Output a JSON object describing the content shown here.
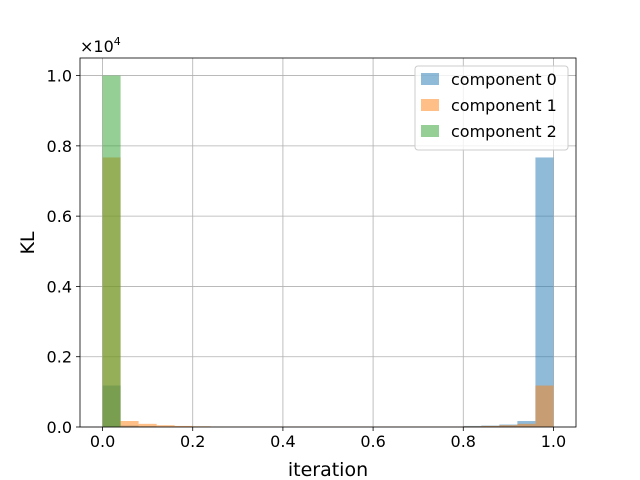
{
  "chart_data": {
    "type": "bar",
    "subtype": "histogram",
    "title": "",
    "xlabel": "iteration",
    "ylabel": "KL",
    "xlim": [
      -0.05,
      1.05
    ],
    "ylim": [
      0,
      1.05
    ],
    "y_offset_label": "×10",
    "y_offset_exponent": "4",
    "x_ticks": [
      "0.0",
      "0.2",
      "0.4",
      "0.6",
      "0.8",
      "1.0"
    ],
    "x_tick_values": [
      0.0,
      0.2,
      0.4,
      0.6,
      0.8,
      1.0
    ],
    "y_ticks": [
      "0.0",
      "0.2",
      "0.4",
      "0.6",
      "0.8",
      "1.0"
    ],
    "y_tick_values": [
      0.0,
      0.2,
      0.4,
      0.6,
      0.8,
      1.0
    ],
    "grid": true,
    "legend_position": "top-right",
    "bins": {
      "start": 0.0,
      "end": 1.0,
      "count": 25
    },
    "series": [
      {
        "name": "component 0",
        "color": "#1f77b4",
        "values": [
          0.118,
          0.004,
          0.002,
          0.001,
          0.001,
          0.001,
          0.001,
          0.001,
          0.001,
          0.001,
          0.001,
          0.001,
          0.001,
          0.001,
          0.001,
          0.001,
          0.001,
          0.001,
          0.001,
          0.001,
          0.003,
          0.004,
          0.007,
          0.017,
          0.767
        ]
      },
      {
        "name": "component 1",
        "color": "#ff7f0e",
        "values": [
          0.767,
          0.017,
          0.009,
          0.005,
          0.003,
          0.002,
          0.001,
          0.001,
          0.001,
          0.001,
          0.001,
          0.001,
          0.001,
          0.001,
          0.001,
          0.001,
          0.001,
          0.001,
          0.001,
          0.001,
          0.002,
          0.003,
          0.005,
          0.009,
          0.118
        ]
      },
      {
        "name": "component 2",
        "color": "#2ca02c",
        "values": [
          1.0,
          0.0,
          0.0,
          0.0,
          0.0,
          0.0,
          0.0,
          0.0,
          0.0,
          0.0,
          0.0,
          0.0,
          0.0,
          0.0,
          0.0,
          0.0,
          0.0,
          0.0,
          0.0,
          0.0,
          0.0,
          0.0,
          0.0,
          0.0,
          0.0
        ]
      }
    ]
  }
}
